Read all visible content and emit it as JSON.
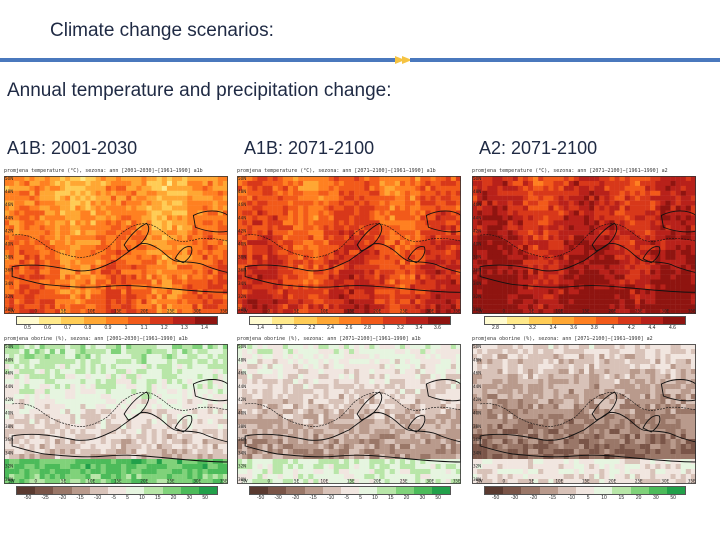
{
  "header": {
    "title": "Climate change scenarios:",
    "subtitle": "Annual temperature and precipitation change:"
  },
  "columns": [
    {
      "label": "A1B: 2001-2030"
    },
    {
      "label": "A1B: 2071-2100"
    },
    {
      "label": "A2: 2071-2100"
    }
  ],
  "maps": {
    "temperature": {
      "headers": [
        "promjena temperature (°C), sezona: ann  [2001–2030]−[1961–1990]  a1b",
        "promjena temperature (°C), sezona: ann  [2071–2100]−[1961–1990]  a1b",
        "promjena temperature (°C), sezona: ann  [2071–2100]−[1961–1990]  a2"
      ],
      "colorbars": [
        [
          "0.5",
          "0.6",
          "0.7",
          "0.8",
          "0.9",
          "1",
          "1.1",
          "1.2",
          "1.3",
          "1.4"
        ],
        [
          "1.4",
          "1.8",
          "2",
          "2.2",
          "2.4",
          "2.6",
          "2.8",
          "3",
          "3.2",
          "3.4",
          "3.6"
        ],
        [
          "2.8",
          "3",
          "3.2",
          "3.4",
          "3.6",
          "3.8",
          "4",
          "4.2",
          "4.4",
          "4.6"
        ]
      ],
      "colors": [
        "#fffbd0",
        "#ffe98a",
        "#ffcc55",
        "#ffa733",
        "#ff8021",
        "#f25a1a",
        "#d8381a",
        "#b8211a",
        "#8f1410"
      ]
    },
    "precipitation": {
      "headers": [
        "promjena oborine (%), sezona: ann  [2001–2030]−[1961–1990]  a1b",
        "promjena oborine (%), sezona: ann  [2071–2100]−[1961–1990]  a1b",
        "promjena oborine (%), sezona: ann  [2071–2100]−[1961–1990]  a2"
      ],
      "colorbars": [
        [
          "-50",
          "-25",
          "-20",
          "-15",
          "-10",
          "-5",
          "5",
          "10",
          "15",
          "20",
          "30",
          "50"
        ],
        [
          "-50",
          "-30",
          "-20",
          "-15",
          "-10",
          "-5",
          "5",
          "10",
          "15",
          "20",
          "30",
          "50"
        ],
        [
          "-50",
          "-30",
          "-20",
          "-15",
          "-10",
          "5",
          "10",
          "15",
          "20",
          "30",
          "50"
        ]
      ],
      "colors": [
        "#5a3a30",
        "#7a5548",
        "#9a7768",
        "#b99a8c",
        "#d8c2b8",
        "#f1e6e0",
        "#e6f5e0",
        "#b8e6a8",
        "#80d27a",
        "#4cbb5a",
        "#22a04a"
      ]
    },
    "lat_ticks": [
      "50N",
      "48N",
      "46N",
      "44N",
      "42N",
      "40N",
      "38N",
      "36N",
      "34N",
      "32N",
      "30N"
    ],
    "lon_ticks": [
      "5W",
      "0",
      "5E",
      "10E",
      "15E",
      "20E",
      "25E",
      "30E",
      "35E"
    ]
  },
  "accent_color": "#4a78bd"
}
